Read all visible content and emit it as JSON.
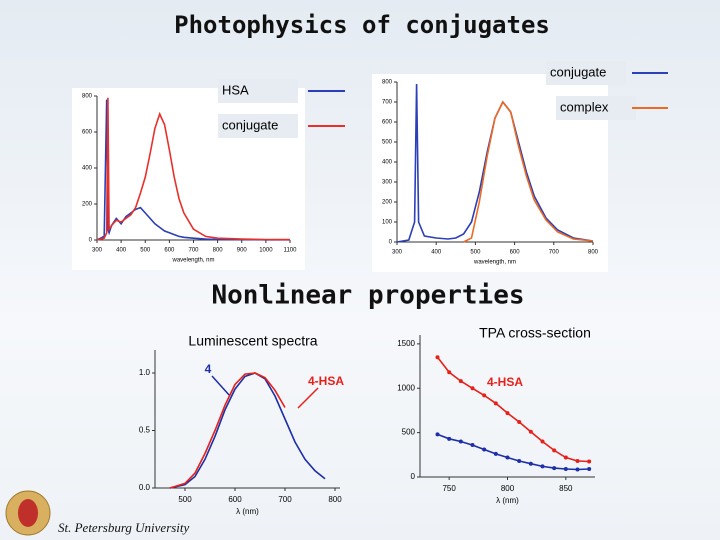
{
  "slide": {
    "title": "Photophysics of conjugates",
    "subtitle": "Nonlinear properties",
    "footer": "St. Petersburg University"
  },
  "chart_data": [
    {
      "type": "line",
      "x_label": "wavelength, nm",
      "x": [
        300,
        330,
        340,
        345,
        350,
        360,
        380,
        400,
        420,
        440,
        460,
        480,
        500,
        520,
        540,
        560,
        580,
        600,
        620,
        640,
        660,
        700,
        750,
        800,
        900,
        1000,
        1100
      ],
      "series": [
        {
          "name": "HSA",
          "color": "#2b3fb8",
          "values": [
            0,
            20,
            780,
            60,
            40,
            80,
            120,
            90,
            130,
            150,
            170,
            180,
            150,
            120,
            90,
            70,
            50,
            40,
            30,
            20,
            15,
            10,
            5,
            3,
            2,
            1,
            1
          ]
        },
        {
          "name": "conjugate",
          "color": "#e8302a",
          "values": [
            0,
            10,
            40,
            790,
            60,
            80,
            110,
            100,
            120,
            140,
            180,
            260,
            350,
            480,
            620,
            700,
            640,
            500,
            350,
            230,
            150,
            60,
            20,
            10,
            5,
            3,
            2
          ]
        }
      ],
      "xlim": [
        300,
        1100
      ],
      "xticks": [
        300,
        400,
        500,
        600,
        700,
        800,
        900,
        1000,
        1100
      ],
      "ylim": [
        0,
        800
      ],
      "yticks": [
        0,
        200,
        400,
        600,
        800
      ]
    },
    {
      "type": "line",
      "x_label": "wavelength, nm",
      "x": [
        300,
        330,
        345,
        350,
        355,
        370,
        400,
        430,
        450,
        470,
        490,
        510,
        530,
        550,
        570,
        590,
        610,
        630,
        650,
        680,
        710,
        750,
        800
      ],
      "series": [
        {
          "name": "conjugate",
          "color": "#2b3fb8",
          "values": [
            0,
            10,
            100,
            790,
            100,
            30,
            20,
            15,
            20,
            40,
            100,
            250,
            450,
            620,
            700,
            650,
            500,
            350,
            230,
            120,
            60,
            20,
            5
          ]
        },
        {
          "name": "complex",
          "color": "#ee6a22",
          "values": [
            null,
            null,
            null,
            null,
            null,
            null,
            null,
            null,
            null,
            0,
            20,
            200,
            430,
            620,
            700,
            650,
            480,
            330,
            210,
            110,
            50,
            15,
            5
          ]
        }
      ],
      "xlim": [
        300,
        800
      ],
      "xticks": [
        300,
        400,
        500,
        600,
        700,
        800
      ],
      "ylim": [
        0,
        800
      ],
      "yticks": [
        0,
        100,
        200,
        300,
        400,
        500,
        600,
        700,
        800
      ]
    },
    {
      "type": "line",
      "title": "Luminescent spectra",
      "x_label": "λ (nm)",
      "x": [
        470,
        500,
        520,
        540,
        560,
        580,
        600,
        620,
        640,
        660,
        680,
        700,
        720,
        740,
        760,
        780
      ],
      "series": [
        {
          "name": "4",
          "color": "#1c2fa8",
          "values": [
            0.0,
            0.03,
            0.1,
            0.25,
            0.45,
            0.68,
            0.86,
            0.97,
            1.0,
            0.95,
            0.8,
            0.6,
            0.4,
            0.25,
            0.15,
            0.08
          ]
        },
        {
          "name": "4-HSA",
          "color": "#e8201a",
          "values": [
            0.0,
            0.04,
            0.13,
            0.3,
            0.5,
            0.72,
            0.9,
            0.99,
            1.0,
            0.96,
            0.85,
            0.7,
            null,
            null,
            null,
            null
          ]
        }
      ],
      "xlim": [
        440,
        810
      ],
      "xticks": [
        500,
        600,
        700,
        800
      ],
      "ylim": [
        0,
        1.2
      ],
      "yticks": [
        {
          "value": 0,
          "label": "0.0"
        },
        {
          "value": 0.5,
          "label": "0.5"
        },
        {
          "value": 1,
          "label": "1.0"
        }
      ]
    },
    {
      "type": "line",
      "title": "TPA cross-section",
      "x_label": "λ (nm)",
      "markers": true,
      "x": [
        740,
        750,
        760,
        770,
        780,
        790,
        800,
        810,
        820,
        830,
        840,
        850,
        860,
        870
      ],
      "series": [
        {
          "name": "4-HSA",
          "color": "#e8201a",
          "values": [
            1350,
            1180,
            1080,
            1000,
            920,
            830,
            720,
            620,
            510,
            400,
            300,
            220,
            180,
            175
          ]
        },
        {
          "name": "4",
          "color": "#1c2fa8",
          "values": [
            480,
            430,
            400,
            360,
            310,
            260,
            220,
            180,
            150,
            120,
            100,
            90,
            85,
            90
          ]
        }
      ],
      "xlim": [
        725,
        875
      ],
      "xticks": [
        750,
        800,
        850
      ],
      "ylim": [
        0,
        1600
      ],
      "yticks": [
        0,
        500,
        1000,
        1500
      ]
    }
  ]
}
